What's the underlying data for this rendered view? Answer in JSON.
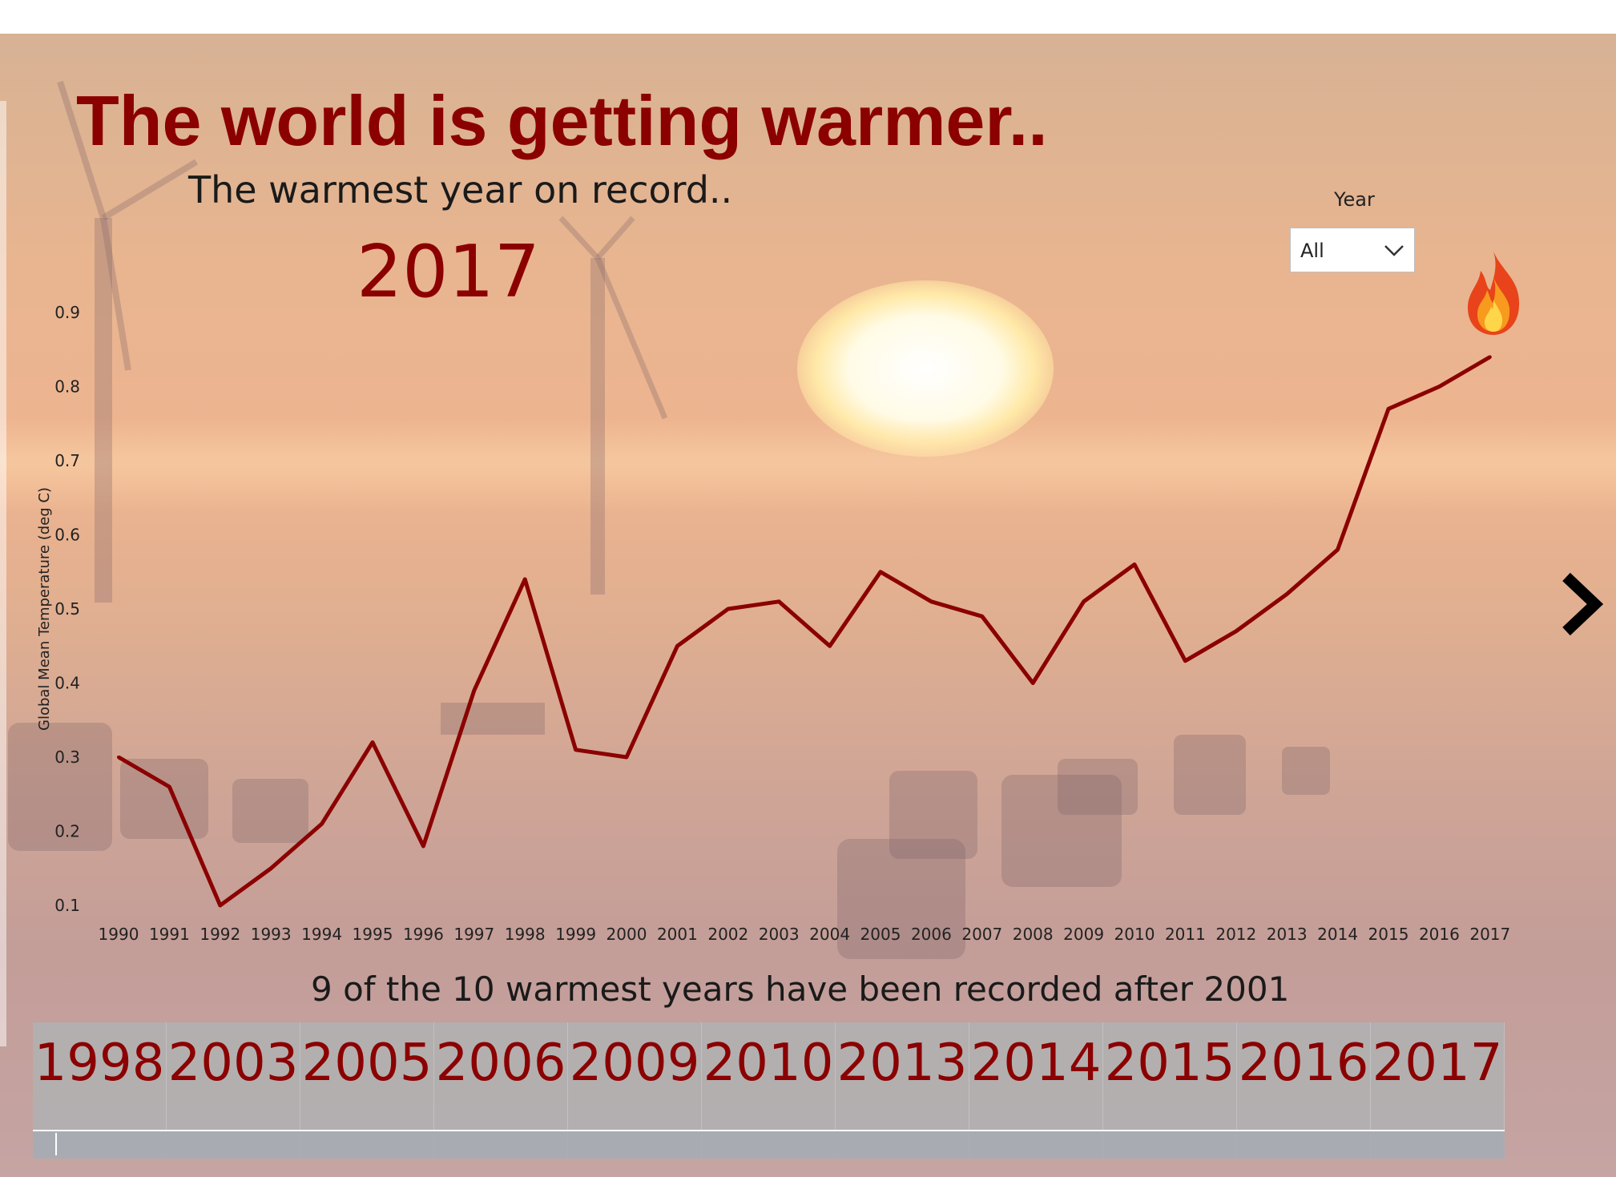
{
  "header": {
    "title": "The world is getting warmer..",
    "subtitle": "The warmest year on record..",
    "warmest_year": "2017"
  },
  "slicer": {
    "label": "Year",
    "value": "All"
  },
  "chart_data": {
    "type": "line",
    "title": "",
    "xlabel": "",
    "ylabel": "Global Mean Temperature (deg C)",
    "x": [
      "1990",
      "1991",
      "1992",
      "1993",
      "1994",
      "1995",
      "1996",
      "1997",
      "1998",
      "1999",
      "2000",
      "2001",
      "2002",
      "2003",
      "2004",
      "2005",
      "2006",
      "2007",
      "2008",
      "2009",
      "2010",
      "2011",
      "2012",
      "2013",
      "2014",
      "2015",
      "2016",
      "2017"
    ],
    "series": [
      {
        "values": [
          0.3,
          0.26,
          0.1,
          0.15,
          0.21,
          0.32,
          0.18,
          0.39,
          0.54,
          0.31,
          0.3,
          0.45,
          0.5,
          0.51,
          0.45,
          0.55,
          0.51,
          0.49,
          0.4,
          0.51,
          0.56,
          0.43,
          0.47,
          0.52,
          0.58,
          0.77,
          0.8,
          0.84
        ],
        "color": "#8b0000"
      }
    ],
    "yticks": [
      "0.1",
      "0.2",
      "0.3",
      "0.4",
      "0.5",
      "0.6",
      "0.7",
      "0.8",
      "0.9"
    ],
    "ylim": [
      0.1,
      0.9
    ],
    "grid": false
  },
  "caption": "9 of the 10 warmest years have been recorded after 2001",
  "warmest_years": [
    "1998",
    "2003",
    "2005",
    "2006",
    "2009",
    "2010",
    "2013",
    "2014",
    "2015",
    "2016",
    "2017"
  ],
  "icons": {
    "flame": "flame-icon",
    "next": "chevron-right-icon",
    "dropdown": "chevron-down-icon"
  },
  "colors": {
    "accent": "#8b0000",
    "line": "#8b0000"
  }
}
